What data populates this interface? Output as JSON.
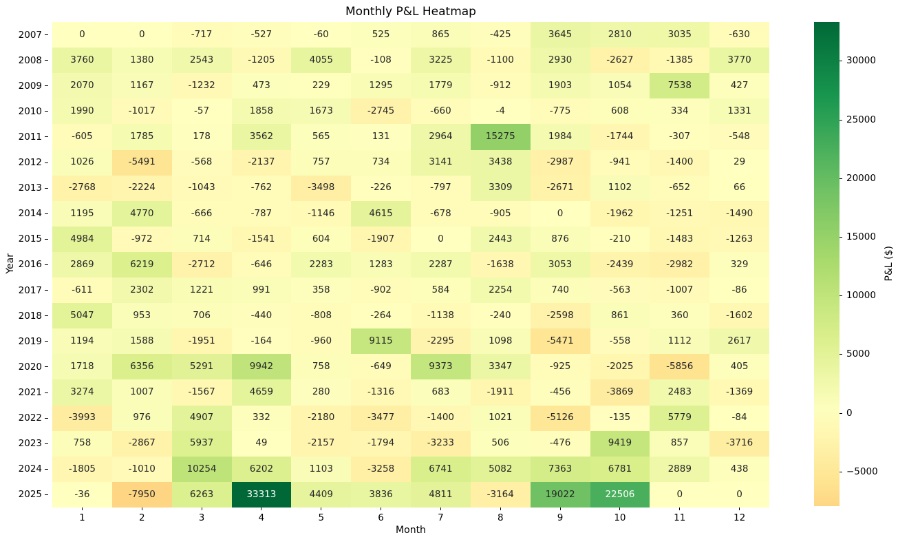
{
  "chart_data": {
    "type": "heatmap",
    "title": "Monthly P&L Heatmap",
    "xlabel": "Month",
    "ylabel": "Year",
    "x_categories": [
      "1",
      "2",
      "3",
      "4",
      "5",
      "6",
      "7",
      "8",
      "9",
      "10",
      "11",
      "12"
    ],
    "y_categories": [
      "2007",
      "2008",
      "2009",
      "2010",
      "2011",
      "2012",
      "2013",
      "2014",
      "2015",
      "2016",
      "2017",
      "2018",
      "2019",
      "2020",
      "2021",
      "2022",
      "2023",
      "2024",
      "2025"
    ],
    "values": [
      [
        0,
        0,
        -717,
        -527,
        -60,
        525,
        865,
        -425,
        3645,
        2810,
        3035,
        -630
      ],
      [
        3760,
        1380,
        2543,
        -1205,
        4055,
        -108,
        3225,
        -1100,
        2930,
        -2627,
        -1385,
        3770
      ],
      [
        2070,
        1167,
        -1232,
        473,
        229,
        1295,
        1779,
        -912,
        1903,
        1054,
        7538,
        427
      ],
      [
        1990,
        -1017,
        -57,
        1858,
        1673,
        -2745,
        -660,
        -4,
        -775,
        608,
        334,
        1331
      ],
      [
        -605,
        1785,
        178,
        3562,
        565,
        131,
        2964,
        15275,
        1984,
        -1744,
        -307,
        -548
      ],
      [
        1026,
        -5491,
        -568,
        -2137,
        757,
        734,
        3141,
        3438,
        -2987,
        -941,
        -1400,
        29
      ],
      [
        -2768,
        -2224,
        -1043,
        -762,
        -3498,
        -226,
        -797,
        3309,
        -2671,
        1102,
        -652,
        66
      ],
      [
        1195,
        4770,
        -666,
        -787,
        -1146,
        4615,
        -678,
        -905,
        0,
        -1962,
        -1251,
        -1490
      ],
      [
        4984,
        -972,
        714,
        -1541,
        604,
        -1907,
        0,
        2443,
        876,
        -210,
        -1483,
        -1263
      ],
      [
        2869,
        6219,
        -2712,
        -646,
        2283,
        1283,
        2287,
        -1638,
        3053,
        -2439,
        -2982,
        329
      ],
      [
        -611,
        2302,
        1221,
        991,
        358,
        -902,
        584,
        2254,
        740,
        -563,
        -1007,
        -86
      ],
      [
        5047,
        953,
        706,
        -440,
        -808,
        -264,
        -1138,
        -240,
        -2598,
        861,
        360,
        -1602
      ],
      [
        1194,
        1588,
        -1951,
        -164,
        -960,
        9115,
        -2295,
        1098,
        -5471,
        -558,
        1112,
        2617
      ],
      [
        1718,
        6356,
        5291,
        9942,
        758,
        -649,
        9373,
        3347,
        -925,
        -2025,
        -5856,
        405
      ],
      [
        3274,
        1007,
        -1567,
        4659,
        280,
        -1316,
        683,
        -1911,
        -456,
        -3869,
        2483,
        -1369
      ],
      [
        -3993,
        976,
        4907,
        332,
        -2180,
        -3477,
        -1400,
        1021,
        -5126,
        -135,
        5779,
        -84
      ],
      [
        758,
        -2867,
        5937,
        49,
        -2157,
        -1794,
        -3233,
        506,
        -476,
        9419,
        857,
        -3716
      ],
      [
        -1805,
        -1010,
        10254,
        6202,
        1103,
        -3258,
        6741,
        5082,
        7363,
        6781,
        2889,
        438
      ],
      [
        -36,
        -7950,
        6263,
        33313,
        4409,
        3836,
        4811,
        -3164,
        19022,
        22506,
        0,
        0
      ]
    ],
    "colormap": "RdYlGn",
    "colormap_colors": [
      "#a50026",
      "#d73027",
      "#f46d43",
      "#fdae61",
      "#fee08b",
      "#ffffbf",
      "#d9ef8b",
      "#a6d96a",
      "#66bd63",
      "#1a9850",
      "#006837"
    ],
    "norm": {
      "center": 0,
      "vmin": -33313,
      "vmax": 33313,
      "data_min": -7950,
      "data_max": 33313
    },
    "annotation_colors": {
      "dark": "#262626",
      "light": "#ffffff"
    },
    "grid": false,
    "colorbar": {
      "label": "P&L ($)",
      "ticks": [
        {
          "value": 30000,
          "label": "30000"
        },
        {
          "value": 25000,
          "label": "25000"
        },
        {
          "value": 20000,
          "label": "20000"
        },
        {
          "value": 15000,
          "label": "15000"
        },
        {
          "value": 10000,
          "label": "10000"
        },
        {
          "value": 5000,
          "label": "5000"
        },
        {
          "value": 0,
          "label": "0"
        },
        {
          "value": -5000,
          "label": "−5000"
        }
      ]
    }
  }
}
